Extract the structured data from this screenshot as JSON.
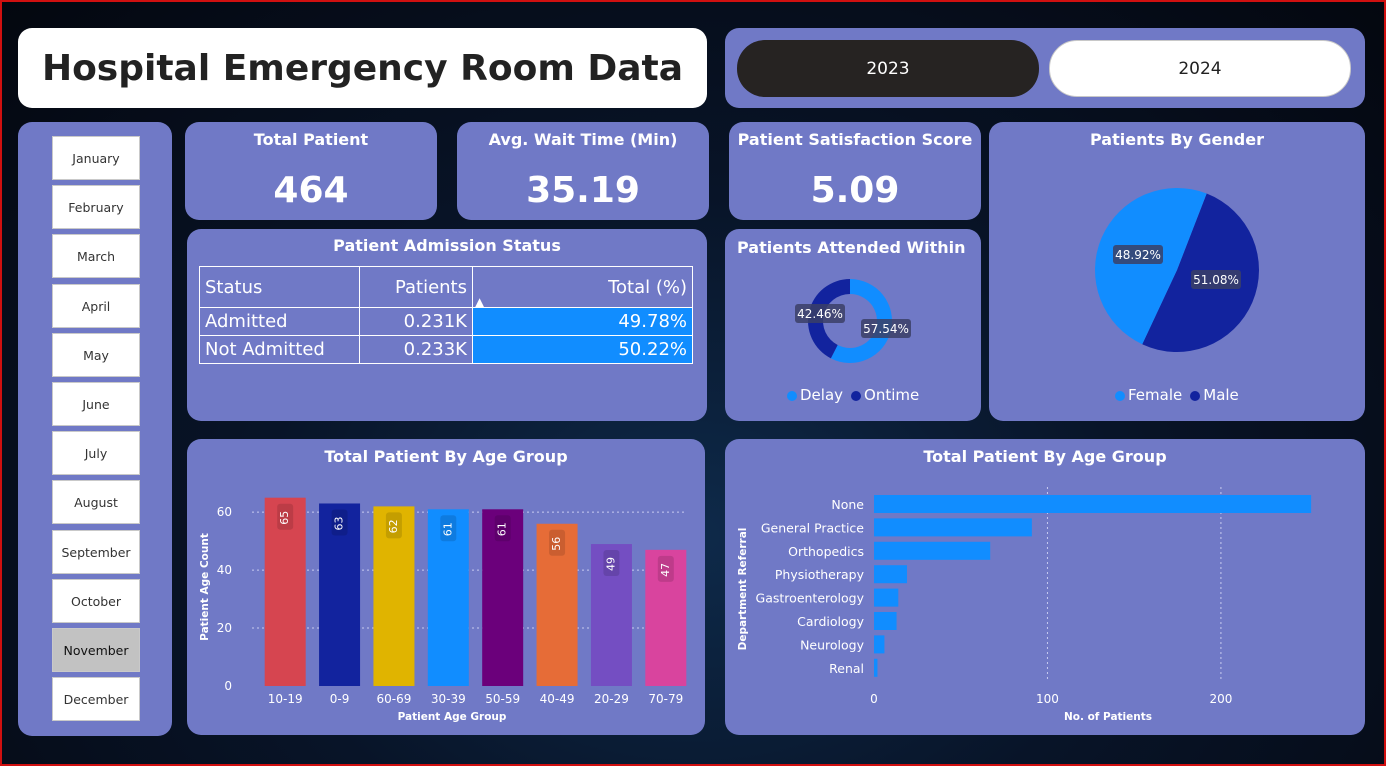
{
  "title": "Hospital Emergency Room Data",
  "years": [
    {
      "label": "2023",
      "active": true
    },
    {
      "label": "2024",
      "active": false
    }
  ],
  "months": [
    "January",
    "February",
    "March",
    "April",
    "May",
    "June",
    "July",
    "August",
    "September",
    "October",
    "November",
    "December"
  ],
  "selected_month": "November",
  "kpis": {
    "total_patient": {
      "label": "Total Patient",
      "value": "464"
    },
    "avg_wait": {
      "label": "Avg. Wait Time (Min)",
      "value": "35.19"
    },
    "satisfaction": {
      "label": "Patient Satisfaction Score",
      "value": "5.09"
    }
  },
  "admission": {
    "title": "Patient Admission Status",
    "headers": [
      "Status",
      "Patients",
      "Total (%)"
    ],
    "rows": [
      {
        "status": "Admitted",
        "patients": "0.231K",
        "pct": "49.78%",
        "pct_value": 49.78
      },
      {
        "status": "Not Admitted",
        "patients": "0.233K",
        "pct": "50.22%",
        "pct_value": 50.22
      }
    ]
  },
  "colors": {
    "panel": "#7079c6",
    "bright_blue": "#118dff",
    "dark_blue": "#12239e"
  },
  "chart_data": [
    {
      "type": "donut",
      "title": "Patients Attended Within Ti...",
      "series": [
        {
          "name": "Delay",
          "value": 57.54,
          "label": "57.54%",
          "color": "#118dff"
        },
        {
          "name": "Ontime",
          "value": 42.46,
          "label": "42.46%",
          "color": "#12239e"
        }
      ],
      "legend": [
        "Delay",
        "Ontime"
      ]
    },
    {
      "type": "pie",
      "title": "Patients By Gender",
      "series": [
        {
          "name": "Female",
          "value": 48.92,
          "label": "48.92%",
          "color": "#118dff"
        },
        {
          "name": "Male",
          "value": 51.08,
          "label": "51.08%",
          "color": "#12239e"
        }
      ],
      "legend": [
        "Female",
        "Male"
      ]
    },
    {
      "type": "bar",
      "title": "Total Patient By Age Group",
      "xlabel": "Patient Age Group",
      "ylabel": "Patient Age Count",
      "categories": [
        "10-19",
        "0-9",
        "60-69",
        "30-39",
        "50-59",
        "40-49",
        "20-29",
        "70-79"
      ],
      "values": [
        65,
        63,
        62,
        61,
        61,
        56,
        49,
        47
      ],
      "colors": [
        "#d64550",
        "#12239e",
        "#e0b400",
        "#118dff",
        "#6b007b",
        "#e66c37",
        "#744ec2",
        "#d9449e"
      ],
      "yticks": [
        0,
        20,
        40,
        60
      ],
      "ylim": [
        0,
        68
      ]
    },
    {
      "type": "bar",
      "orientation": "horizontal",
      "title": "Total Patient By Age Group",
      "xlabel": "No. of Patients",
      "ylabel": "Department Referral",
      "categories": [
        "None",
        "General Practice",
        "Orthopedics",
        "Physiotherapy",
        "Gastroenterology",
        "Cardiology",
        "Neurology",
        "Renal"
      ],
      "values": [
        252,
        91,
        67,
        19,
        14,
        13,
        6,
        2
      ],
      "xticks": [
        0,
        100,
        200
      ],
      "xlim": [
        0,
        260
      ]
    }
  ]
}
